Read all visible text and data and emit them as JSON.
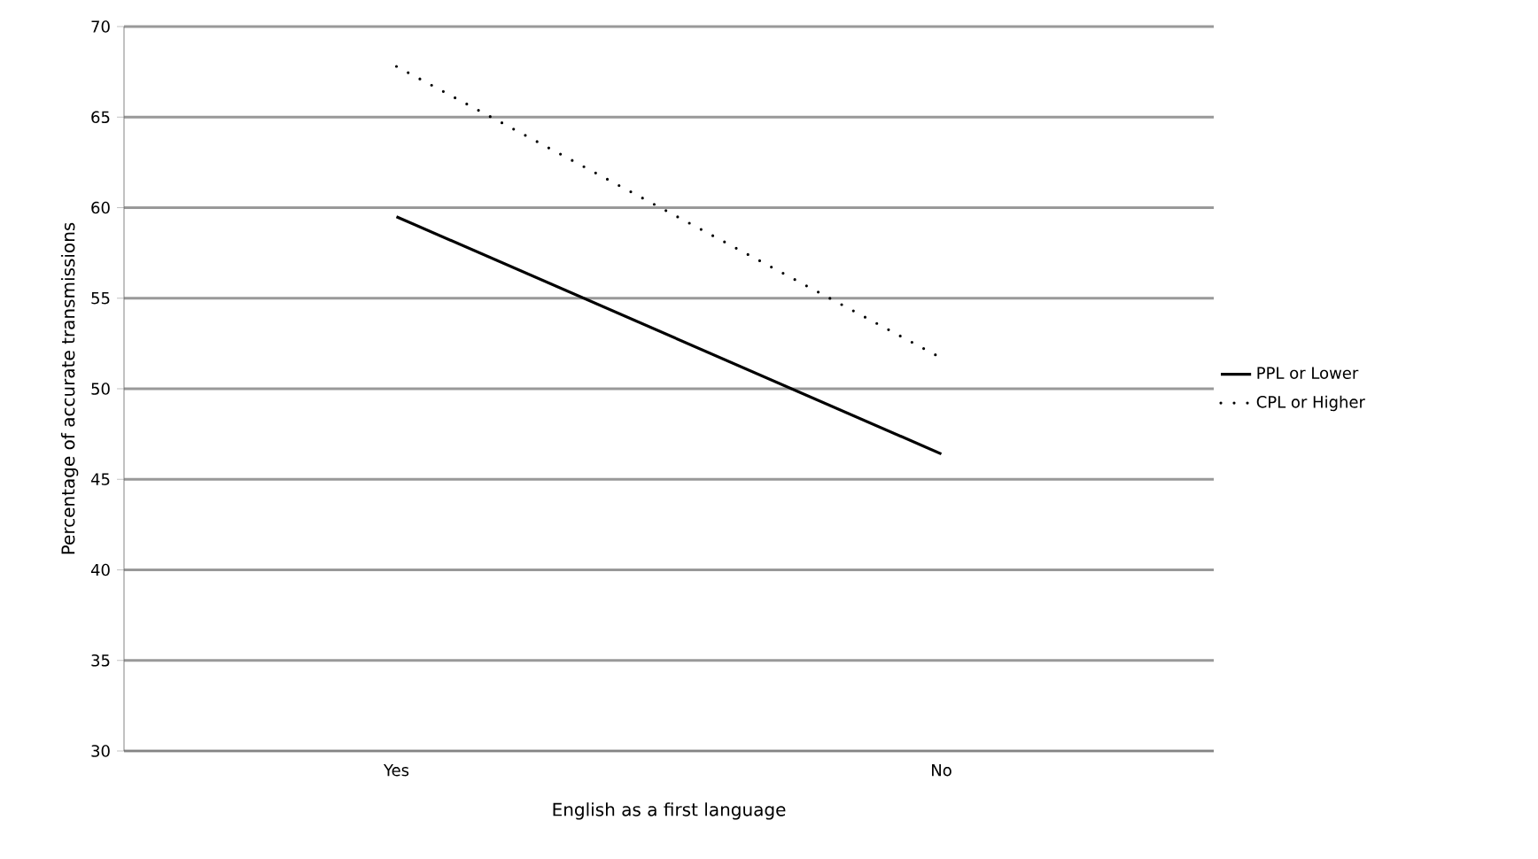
{
  "chart_data": {
    "type": "line",
    "xlabel": "English as a first language",
    "ylabel": "Percentage of accurate transmissions",
    "categories": [
      "Yes",
      "No"
    ],
    "series": [
      {
        "name": "PPL or Lower",
        "color": "#000000",
        "line_style": "solid",
        "values": [
          59.5,
          46.4
        ]
      },
      {
        "name": "CPL or Higher",
        "color": "#000000",
        "line_style": "dotted",
        "values": [
          67.8,
          51.7
        ]
      }
    ],
    "ylim": [
      30,
      70
    ],
    "yticks": [
      30,
      35,
      40,
      45,
      50,
      55,
      60,
      65,
      70
    ],
    "grid": "y",
    "legend": "right",
    "marker": "none"
  }
}
